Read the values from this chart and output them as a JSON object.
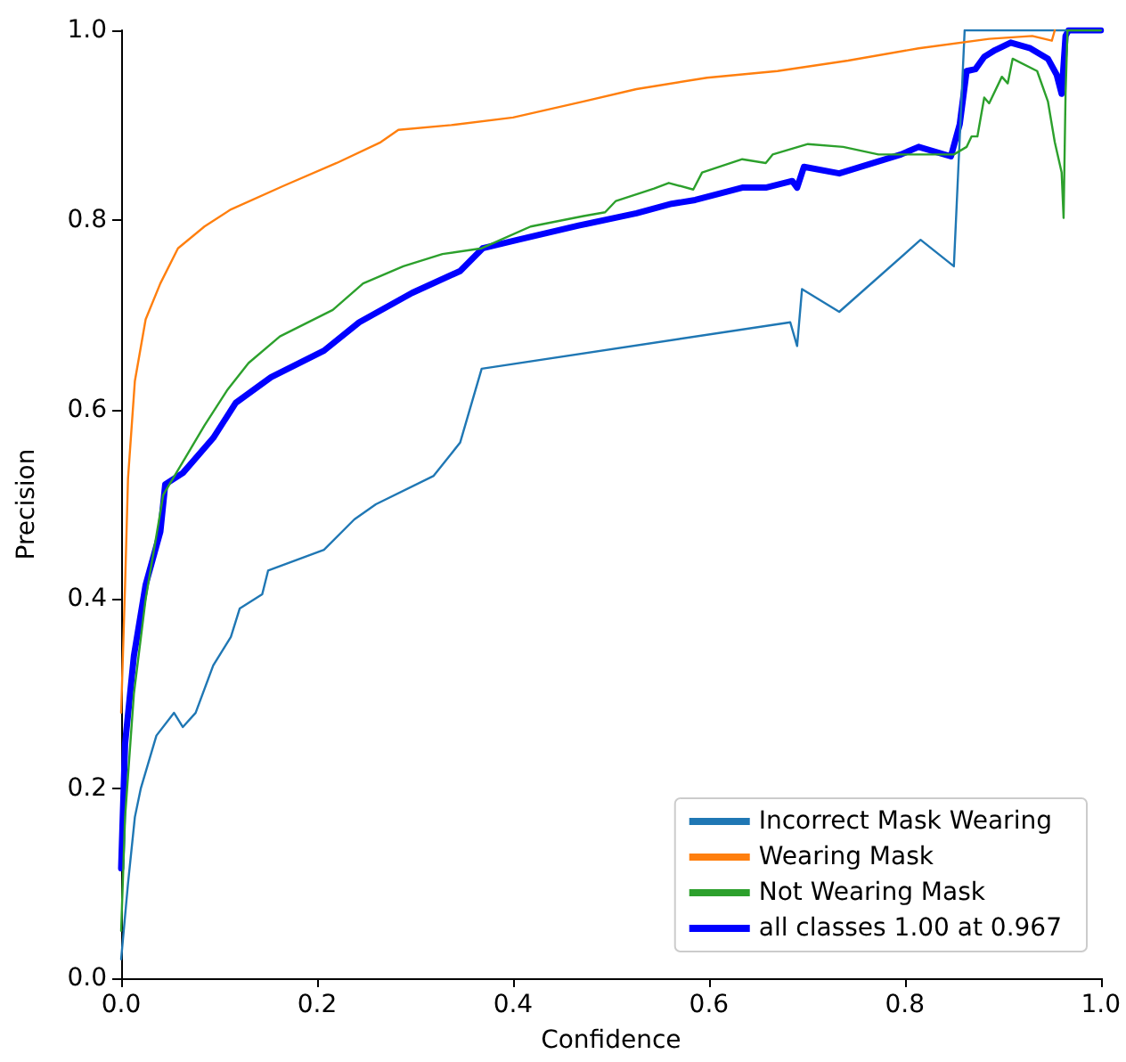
{
  "chart_data": {
    "type": "line",
    "xlabel": "Confidence",
    "ylabel": "Precision",
    "xlim": [
      0,
      1
    ],
    "ylim": [
      0,
      1
    ],
    "xticks": [
      {
        "value": 0,
        "label": "0.0"
      },
      {
        "value": 0.2,
        "label": "0.2"
      },
      {
        "value": 0.4,
        "label": "0.4"
      },
      {
        "value": 0.6,
        "label": "0.6"
      },
      {
        "value": 0.8,
        "label": "0.8"
      },
      {
        "value": 1,
        "label": "1.0"
      }
    ],
    "yticks": [
      {
        "value": 0,
        "label": "0.0"
      },
      {
        "value": 0.2,
        "label": "0.2"
      },
      {
        "value": 0.4,
        "label": "0.4"
      },
      {
        "value": 0.6,
        "label": "0.6"
      },
      {
        "value": 0.8,
        "label": "0.8"
      },
      {
        "value": 1,
        "label": "1.0"
      }
    ],
    "grid": false,
    "legend": "bottom right",
    "marker": "none",
    "line_style": "solid",
    "series": [
      {
        "name": "Incorrect Mask Wearing",
        "color": "#1f77b4",
        "x": [
          0,
          0.007,
          0.014,
          0.02,
          0.036,
          0.054,
          0.063,
          0.076,
          0.094,
          0.112,
          0.121,
          0.144,
          0.15,
          0.207,
          0.238,
          0.26,
          0.319,
          0.346,
          0.368,
          0.683,
          0.69,
          0.695,
          0.733,
          0.816,
          0.85,
          0.861,
          1
        ],
        "values": [
          0.02,
          0.1,
          0.17,
          0.2,
          0.256,
          0.28,
          0.265,
          0.28,
          0.33,
          0.36,
          0.39,
          0.405,
          0.43,
          0.452,
          0.484,
          0.5,
          0.53,
          0.565,
          0.643,
          0.692,
          0.667,
          0.727,
          0.703,
          0.779,
          0.751,
          1.0,
          1.0
        ]
      },
      {
        "name": "Wearing Mask",
        "color": "#ff7f0e",
        "x": [
          0,
          0.004,
          0.007,
          0.014,
          0.025,
          0.04,
          0.058,
          0.085,
          0.112,
          0.166,
          0.22,
          0.265,
          0.283,
          0.337,
          0.4,
          0.472,
          0.526,
          0.598,
          0.67,
          0.742,
          0.814,
          0.886,
          0.93,
          0.95,
          0.953
        ],
        "values": [
          0.28,
          0.415,
          0.527,
          0.63,
          0.695,
          0.733,
          0.77,
          0.793,
          0.811,
          0.836,
          0.86,
          0.882,
          0.895,
          0.9,
          0.908,
          0.925,
          0.938,
          0.95,
          0.957,
          0.968,
          0.981,
          0.991,
          0.994,
          0.989,
          1.0
        ]
      },
      {
        "name": "Not Wearing Mask",
        "color": "#2ca02c",
        "x": [
          0,
          0.004,
          0.013,
          0.025,
          0.043,
          0.058,
          0.085,
          0.108,
          0.13,
          0.162,
          0.216,
          0.247,
          0.288,
          0.328,
          0.368,
          0.418,
          0.472,
          0.494,
          0.505,
          0.544,
          0.559,
          0.584,
          0.593,
          0.634,
          0.658,
          0.665,
          0.701,
          0.737,
          0.773,
          0.85,
          0.863,
          0.868,
          0.874,
          0.881,
          0.886,
          0.899,
          0.905,
          0.91,
          0.935,
          0.946,
          0.953,
          0.96,
          0.962,
          0.964,
          0.966,
          1
        ],
        "values": [
          0.05,
          0.17,
          0.3,
          0.4,
          0.51,
          0.536,
          0.583,
          0.62,
          0.649,
          0.677,
          0.705,
          0.733,
          0.751,
          0.764,
          0.77,
          0.793,
          0.804,
          0.808,
          0.82,
          0.833,
          0.839,
          0.832,
          0.85,
          0.864,
          0.86,
          0.869,
          0.88,
          0.877,
          0.869,
          0.869,
          0.877,
          0.888,
          0.888,
          0.929,
          0.923,
          0.951,
          0.944,
          0.97,
          0.957,
          0.925,
          0.882,
          0.85,
          0.802,
          0.933,
          1.0,
          1.0
        ]
      },
      {
        "name": "all classes 1.00 at 0.967",
        "color": "#0000ff",
        "x": [
          0,
          0.004,
          0.013,
          0.025,
          0.04,
          0.045,
          0.063,
          0.094,
          0.117,
          0.153,
          0.207,
          0.243,
          0.297,
          0.346,
          0.369,
          0.405,
          0.467,
          0.526,
          0.562,
          0.586,
          0.634,
          0.658,
          0.685,
          0.69,
          0.697,
          0.733,
          0.796,
          0.814,
          0.847,
          0.856,
          0.863,
          0.872,
          0.881,
          0.892,
          0.908,
          0.928,
          0.946,
          0.955,
          0.96,
          0.964,
          0.967,
          1
        ],
        "values": [
          0.116,
          0.247,
          0.34,
          0.415,
          0.471,
          0.521,
          0.533,
          0.57,
          0.607,
          0.634,
          0.662,
          0.692,
          0.723,
          0.746,
          0.77,
          0.779,
          0.794,
          0.807,
          0.817,
          0.821,
          0.834,
          0.834,
          0.841,
          0.834,
          0.856,
          0.849,
          0.869,
          0.877,
          0.867,
          0.901,
          0.957,
          0.959,
          0.972,
          0.979,
          0.987,
          0.981,
          0.97,
          0.953,
          0.933,
          0.994,
          1.0,
          1.0
        ]
      }
    ]
  }
}
